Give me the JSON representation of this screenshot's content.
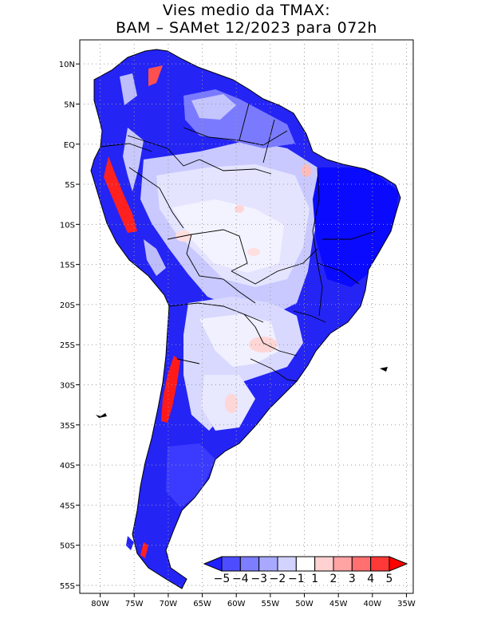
{
  "title": {
    "line1": "Vies medio da TMAX:",
    "line2": "BAM – SAMet 12/2023  para 072h"
  },
  "map": {
    "region": "South America",
    "variable": "TMAX bias",
    "lat_range": [
      -56,
      13
    ],
    "lon_range": [
      -83,
      -34
    ],
    "lat_ticks": [
      {
        "value": 10,
        "label": "10N"
      },
      {
        "value": 5,
        "label": "5N"
      },
      {
        "value": 0,
        "label": "EQ"
      },
      {
        "value": -5,
        "label": "5S"
      },
      {
        "value": -10,
        "label": "10S"
      },
      {
        "value": -15,
        "label": "15S"
      },
      {
        "value": -20,
        "label": "20S"
      },
      {
        "value": -25,
        "label": "25S"
      },
      {
        "value": -30,
        "label": "30S"
      },
      {
        "value": -35,
        "label": "35S"
      },
      {
        "value": -40,
        "label": "40S"
      },
      {
        "value": -45,
        "label": "45S"
      },
      {
        "value": -50,
        "label": "50S"
      },
      {
        "value": -55,
        "label": "55S"
      }
    ],
    "lon_ticks": [
      {
        "value": -80,
        "label": "80W"
      },
      {
        "value": -75,
        "label": "75W"
      },
      {
        "value": -70,
        "label": "70W"
      },
      {
        "value": -65,
        "label": "65W"
      },
      {
        "value": -60,
        "label": "60W"
      },
      {
        "value": -55,
        "label": "55W"
      },
      {
        "value": -50,
        "label": "50W"
      },
      {
        "value": -45,
        "label": "45W"
      },
      {
        "value": -40,
        "label": "40W"
      },
      {
        "value": -35,
        "label": "35W"
      }
    ]
  },
  "colorbar": {
    "labels": [
      "−5",
      "−4",
      "−3",
      "−2",
      "−1",
      "1",
      "2",
      "3",
      "4",
      "5"
    ],
    "colors": [
      "#1f1fff",
      "#4d4dff",
      "#7d7dff",
      "#a8a8ff",
      "#d3d3ff",
      "#ffffff",
      "#ffd1d1",
      "#ffa3a3",
      "#ff7070",
      "#ff3838",
      "#ff0000"
    ]
  }
}
